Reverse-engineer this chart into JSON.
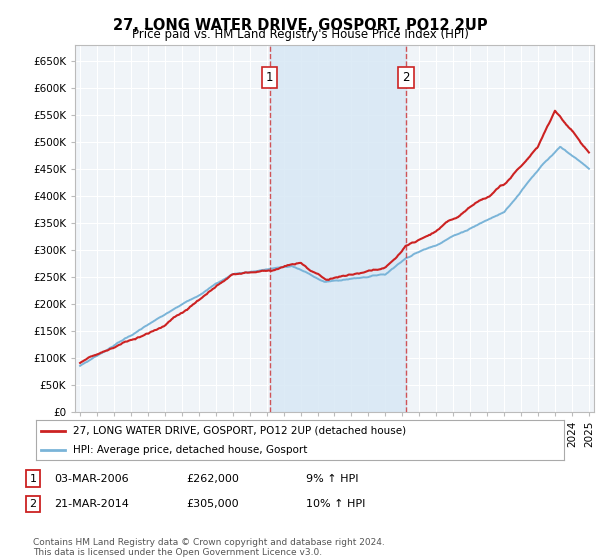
{
  "title": "27, LONG WATER DRIVE, GOSPORT, PO12 2UP",
  "subtitle": "Price paid vs. HM Land Registry's House Price Index (HPI)",
  "ylabel_ticks": [
    "£0",
    "£50K",
    "£100K",
    "£150K",
    "£200K",
    "£250K",
    "£300K",
    "£350K",
    "£400K",
    "£450K",
    "£500K",
    "£550K",
    "£600K",
    "£650K"
  ],
  "ytick_values": [
    0,
    50000,
    100000,
    150000,
    200000,
    250000,
    300000,
    350000,
    400000,
    450000,
    500000,
    550000,
    600000,
    650000
  ],
  "ylim": [
    0,
    680000
  ],
  "hpi_color": "#7ab4d8",
  "price_color": "#cc2222",
  "vline_color": "#cc2222",
  "sale1_year": 2006.17,
  "sale1_price": 262000,
  "sale1_label": "1",
  "sale2_year": 2014.22,
  "sale2_price": 305000,
  "sale2_label": "2",
  "legend_line1": "27, LONG WATER DRIVE, GOSPORT, PO12 2UP (detached house)",
  "legend_line2": "HPI: Average price, detached house, Gosport",
  "table_row1": [
    "1",
    "03-MAR-2006",
    "£262,000",
    "9% ↑ HPI"
  ],
  "table_row2": [
    "2",
    "21-MAR-2014",
    "£305,000",
    "10% ↑ HPI"
  ],
  "footnote": "Contains HM Land Registry data © Crown copyright and database right 2024.\nThis data is licensed under the Open Government Licence v3.0.",
  "bg_color": "#ffffff",
  "plot_bg_color": "#f0f4f8",
  "grid_color": "#ffffff",
  "highlight_bg": "#d8e8f5",
  "xlim_left": 1994.7,
  "xlim_right": 2025.3
}
